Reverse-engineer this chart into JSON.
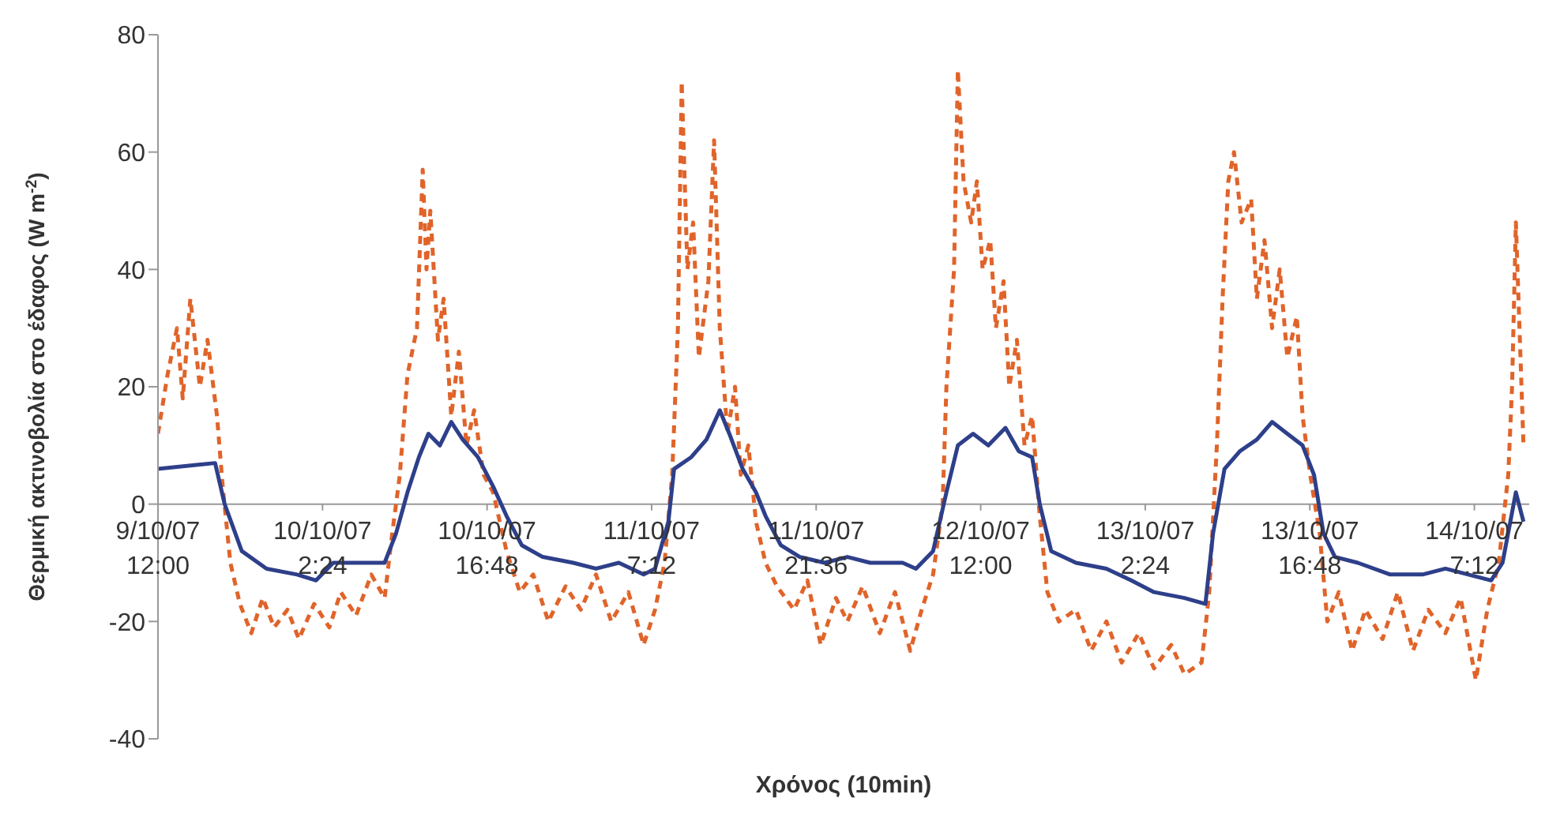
{
  "chart_data": {
    "type": "line",
    "xlabel": "Χρόνος (10min)",
    "ylabel": "Θερμική ακτινοβολία στο έδαφος    (W m$^{-2}$)",
    "xlim": [
      "--10-09T12:00",
      "--10-14T12:00"
    ],
    "xticks": [
      {
        "value": "--10-09T12:00",
        "label": "9/10/07 12:00"
      },
      {
        "value": "--10-10T02:24",
        "label": "10/10/07 2:24"
      },
      {
        "value": "--10-10T16:48",
        "label": "10/10/07 16:48"
      },
      {
        "value": "--10-11T07:12",
        "label": "11/10/07 7:12"
      },
      {
        "value": "--10-11T21:36",
        "label": "11/10/07 21:36"
      },
      {
        "value": "--10-12T12:00",
        "label": "12/10/07 12:00"
      },
      {
        "value": "--10-13T02:24",
        "label": "13/10/07 2:24"
      },
      {
        "value": "--10-13T16:48",
        "label": "13/10/07 16:48"
      },
      {
        "value": "--10-14T07:12",
        "label": "14/10/07 7:12"
      }
    ],
    "ylim": [
      -40,
      80
    ],
    "yticks": [
      -40,
      -20,
      0,
      20,
      40,
      60,
      80
    ],
    "grid": false,
    "legend": false,
    "marker": "none",
    "series": [
      {
        "color": "#e0642a",
        "line_style": "dashed",
        "x": [
          "--10-09T12:00",
          "--10-09T12:50",
          "--10-09T13:40",
          "--10-09T14:10",
          "--10-09T14:50",
          "--10-09T15:40",
          "--10-09T16:20",
          "--10-09T17:10",
          "--10-09T17:40",
          "--10-09T18:20",
          "--10-09T19:10",
          "--10-09T20:10",
          "--10-09T21:10",
          "--10-09T22:10",
          "--10-09T23:20",
          "--10-10T00:20",
          "--10-10T01:40",
          "--10-10T03:00",
          "--10-10T04:00",
          "--10-10T05:20",
          "--10-10T06:40",
          "--10-10T07:50",
          "--10-10T08:30",
          "--10-10T09:10",
          "--10-10T09:50",
          "--10-10T10:40",
          "--10-10T11:10",
          "--10-10T11:30",
          "--10-10T11:50",
          "--10-10T12:30",
          "--10-10T13:00",
          "--10-10T13:40",
          "--10-10T14:20",
          "--10-10T15:00",
          "--10-10T15:40",
          "--10-10T16:30",
          "--10-10T17:20",
          "--10-10T18:30",
          "--10-10T19:40",
          "--10-10T20:50",
          "--10-10T22:10",
          "--10-10T23:40",
          "--10-11T01:00",
          "--10-11T02:20",
          "--10-11T03:40",
          "--10-11T05:10",
          "--10-11T06:30",
          "--10-11T07:30",
          "--10-11T08:20",
          "--10-11T09:00",
          "--10-11T09:30",
          "--10-11T09:50",
          "--10-11T10:20",
          "--10-11T10:50",
          "--10-11T11:20",
          "--10-11T12:10",
          "--10-11T12:40",
          "--10-11T13:10",
          "--10-11T13:50",
          "--10-11T14:30",
          "--10-11T15:00",
          "--10-11T15:40",
          "--10-11T16:20",
          "--10-11T17:10",
          "--10-11T18:10",
          "--10-11T19:40",
          "--10-11T20:50",
          "--10-11T22:00",
          "--10-11T23:20",
          "--10-12T00:20",
          "--10-12T01:40",
          "--10-12T03:10",
          "--10-12T04:30",
          "--10-12T05:50",
          "--10-12T06:50",
          "--10-12T07:50",
          "--10-12T08:40",
          "--10-12T09:00",
          "--10-12T09:40",
          "--10-12T10:00",
          "--10-12T10:30",
          "--10-12T11:10",
          "--10-12T11:40",
          "--10-12T12:10",
          "--10-12T12:50",
          "--10-12T13:20",
          "--10-12T14:00",
          "--10-12T14:30",
          "--10-12T15:10",
          "--10-12T15:50",
          "--10-12T16:30",
          "--10-12T17:10",
          "--10-12T17:50",
          "--10-12T18:50",
          "--10-12T20:20",
          "--10-12T21:40",
          "--10-12T23:00",
          "--10-13T00:20",
          "--10-13T01:50",
          "--10-13T03:10",
          "--10-13T04:40",
          "--10-13T05:50",
          "--10-13T07:20",
          "--10-13T08:00",
          "--10-13T08:40",
          "--10-13T09:10",
          "--10-13T09:40",
          "--10-13T10:10",
          "--10-13T10:50",
          "--10-13T11:40",
          "--10-13T12:10",
          "--10-13T12:50",
          "--10-13T13:30",
          "--10-13T14:10",
          "--10-13T14:50",
          "--10-13T15:40",
          "--10-13T16:10",
          "--10-13T16:50",
          "--10-13T17:40",
          "--10-13T18:20",
          "--10-13T19:20",
          "--10-13T20:30",
          "--10-13T21:40",
          "--10-13T23:10",
          "--10-14T00:30",
          "--10-14T01:50",
          "--10-14T03:10",
          "--10-14T04:40",
          "--10-14T06:00",
          "--10-14T07:20",
          "--10-14T08:20",
          "--10-14T09:20",
          "--10-14T10:10",
          "--10-14T10:30",
          "--10-14T10:50",
          "--10-14T11:30"
        ],
        "values": [
          12,
          22,
          30,
          18,
          35,
          20,
          28,
          15,
          3,
          -10,
          -17,
          -22,
          -16,
          -21,
          -18,
          -23,
          -17,
          -21,
          -15,
          -19,
          -12,
          -16,
          -5,
          5,
          22,
          30,
          57,
          40,
          50,
          28,
          35,
          15,
          26,
          10,
          16,
          5,
          2,
          -8,
          -15,
          -12,
          -20,
          -14,
          -18,
          -12,
          -20,
          -15,
          -24,
          -18,
          -10,
          5,
          30,
          72,
          40,
          48,
          25,
          38,
          62,
          30,
          12,
          20,
          5,
          10,
          -3,
          -10,
          -14,
          -18,
          -13,
          -24,
          -16,
          -20,
          -14,
          -22,
          -15,
          -25,
          -18,
          -12,
          0,
          20,
          40,
          74,
          55,
          48,
          55,
          40,
          45,
          30,
          38,
          20,
          28,
          10,
          15,
          -2,
          -15,
          -20,
          -18,
          -25,
          -20,
          -27,
          -22,
          -28,
          -24,
          -29,
          -27,
          -15,
          10,
          35,
          55,
          60,
          48,
          52,
          35,
          45,
          30,
          40,
          25,
          32,
          15,
          5,
          -5,
          -20,
          -15,
          -25,
          -18,
          -23,
          -15,
          -25,
          -18,
          -22,
          -16,
          -30,
          -18,
          -10,
          5,
          20,
          48,
          10
        ]
      },
      {
        "color": "#2e3f8a",
        "line_style": "solid",
        "x": [
          "--10-09T12:00",
          "--10-09T17:00",
          "--10-09T17:50",
          "--10-09T19:20",
          "--10-09T21:30",
          "--10-10T00:10",
          "--10-10T01:50",
          "--10-10T03:20",
          "--10-10T05:40",
          "--10-10T07:50",
          "--10-10T08:50",
          "--10-10T09:50",
          "--10-10T10:50",
          "--10-10T11:40",
          "--10-10T12:40",
          "--10-10T13:40",
          "--10-10T14:40",
          "--10-10T16:00",
          "--10-10T17:20",
          "--10-10T18:30",
          "--10-10T19:50",
          "--10-10T21:40",
          "--10-11T00:20",
          "--10-11T02:20",
          "--10-11T04:20",
          "--10-11T06:30",
          "--10-11T07:30",
          "--10-11T08:40",
          "--10-11T09:10",
          "--10-11T10:40",
          "--10-11T12:00",
          "--10-11T13:10",
          "--10-11T14:00",
          "--10-11T15:10",
          "--10-11T16:20",
          "--10-11T17:10",
          "--10-11T18:30",
          "--10-11T20:10",
          "--10-11T22:20",
          "--10-12T00:20",
          "--10-12T02:20",
          "--10-12T05:10",
          "--10-12T06:20",
          "--10-12T07:50",
          "--10-12T09:00",
          "--10-12T10:00",
          "--10-12T11:20",
          "--10-12T12:40",
          "--10-12T14:10",
          "--10-12T15:20",
          "--10-12T16:30",
          "--10-12T17:10",
          "--10-12T18:10",
          "--10-12T20:20",
          "--10-12T23:00",
          "--10-13T01:10",
          "--10-13T03:10",
          "--10-13T05:50",
          "--10-13T07:40",
          "--10-13T08:20",
          "--10-13T09:20",
          "--10-13T10:40",
          "--10-13T12:10",
          "--10-13T13:30",
          "--10-13T14:50",
          "--10-13T16:10",
          "--10-13T17:10",
          "--10-13T18:00",
          "--10-13T19:00",
          "--10-13T21:00",
          "--10-13T23:50",
          "--10-14T02:40",
          "--10-14T04:40",
          "--10-14T06:40",
          "--10-14T08:40",
          "--10-14T09:40",
          "--10-14T10:50",
          "--10-14T11:30"
        ],
        "values": [
          6,
          7,
          0,
          -8,
          -11,
          -12,
          -13,
          -10,
          -10,
          -10,
          -5,
          2,
          8,
          12,
          10,
          14,
          11,
          8,
          3,
          -2,
          -7,
          -9,
          -10,
          -11,
          -10,
          -12,
          -11,
          -3,
          6,
          8,
          11,
          16,
          12,
          6,
          2,
          -2,
          -7,
          -9,
          -10,
          -9,
          -10,
          -10,
          -11,
          -8,
          2,
          10,
          12,
          10,
          13,
          9,
          8,
          0,
          -8,
          -10,
          -11,
          -13,
          -15,
          -16,
          -17,
          -5,
          6,
          9,
          11,
          14,
          12,
          10,
          5,
          -5,
          -9,
          -10,
          -12,
          -12,
          -11,
          -12,
          -13,
          -10,
          2,
          -3
        ]
      }
    ]
  }
}
